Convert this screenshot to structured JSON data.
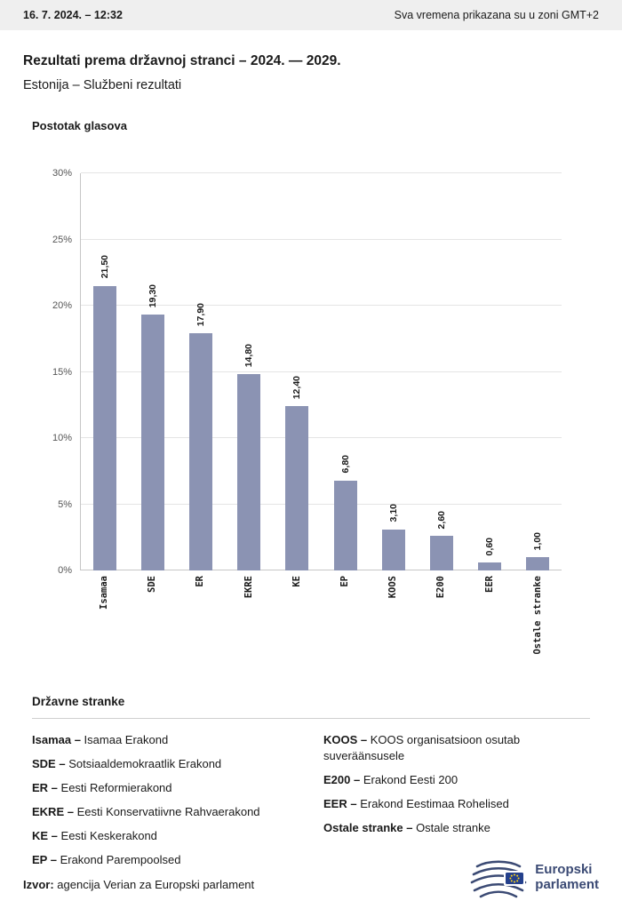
{
  "header": {
    "datetime": "16. 7. 2024. – 12:32",
    "timezone_note": "Sva vremena prikazana su u zoni GMT+2"
  },
  "title": "Rezultati prema državnoj stranci – 2024. — 2029.",
  "subtitle": "Estonija – Službeni rezultati",
  "chart_data": {
    "type": "bar",
    "title": "Postotak glasova",
    "categories": [
      "Isamaa",
      "SDE",
      "ER",
      "EKRE",
      "KE",
      "EP",
      "KOOS",
      "E200",
      "EER",
      "Ostale stranke"
    ],
    "values": [
      21.5,
      19.3,
      17.9,
      14.8,
      12.4,
      6.8,
      3.1,
      2.6,
      0.6,
      1.0
    ],
    "value_labels": [
      "21,50",
      "19,30",
      "17,90",
      "14,80",
      "12,40",
      "6,80",
      "3,10",
      "2,60",
      "0,60",
      "1,00"
    ],
    "xlabel": "",
    "ylabel": "Postotak glasova",
    "ylim": [
      0,
      30
    ],
    "ytick_values": [
      0,
      5,
      10,
      15,
      20,
      25,
      30
    ],
    "ytick_labels": [
      "0%",
      "5%",
      "10%",
      "15%",
      "20%",
      "25%",
      "30%"
    ],
    "bar_color": "#8b93b3",
    "grid": true,
    "legend_position": "none"
  },
  "legend": {
    "heading": "Državne stranke",
    "columns": [
      {
        "items": [
          {
            "abbr": "Isamaa –",
            "name": "Isamaa Erakond"
          },
          {
            "abbr": "SDE –",
            "name": "Sotsiaaldemokraatlik Erakond"
          },
          {
            "abbr": "ER –",
            "name": "Eesti Reformierakond"
          },
          {
            "abbr": "EKRE –",
            "name": "Eesti Konservatiivne Rahvaerakond"
          },
          {
            "abbr": "KE –",
            "name": "Eesti Keskerakond"
          },
          {
            "abbr": "EP –",
            "name": "Erakond Parempoolsed"
          }
        ]
      },
      {
        "items": [
          {
            "abbr": "KOOS –",
            "name": "KOOS organisatsioon osutab suveräänsusele"
          },
          {
            "abbr": "E200 –",
            "name": "Erakond Eesti 200"
          },
          {
            "abbr": "EER –",
            "name": "Erakond Eestimaa Rohelised"
          },
          {
            "abbr": "Ostale stranke –",
            "name": "Ostale stranke"
          }
        ]
      }
    ]
  },
  "footer": {
    "source_label": "Izvor:",
    "source_text": " agencija Verian za Europski parlament",
    "logo_line1": "Europski",
    "logo_line2": "parlament"
  }
}
